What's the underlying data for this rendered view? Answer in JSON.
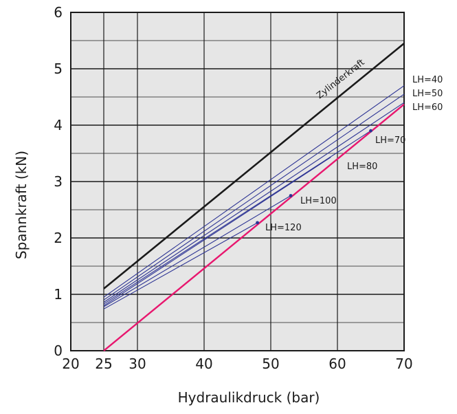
{
  "chart_data": {
    "type": "line",
    "title": "",
    "xlabel": "Hydraulikdruck (bar)",
    "ylabel": "Spannkraft  (kN)",
    "xlim": [
      20,
      70
    ],
    "ylim": [
      0,
      6
    ],
    "x_ticks": [
      20,
      25,
      30,
      40,
      50,
      60,
      70
    ],
    "x_tick_labels": [
      "20",
      "25",
      "30",
      "40",
      "50",
      "60",
      "70"
    ],
    "y_ticks": [
      0,
      1,
      2,
      3,
      4,
      5,
      6
    ],
    "y_tick_labels": [
      "0",
      "1",
      "2",
      "3",
      "4",
      "5",
      "6"
    ],
    "x_minor_grid": [
      20,
      25,
      30,
      40,
      50,
      60,
      70
    ],
    "y_minor_grid": [
      0.5,
      1.5,
      2.5,
      3.5,
      4.5,
      5.5
    ],
    "grid": true,
    "background": "#e6e6e6",
    "colors": {
      "cylinder": "#1a1a1a",
      "lh_curves": "#2d3494",
      "limit": "#e8166e"
    },
    "series": [
      {
        "name": "Zylinderkraft",
        "x": [
          25,
          70
        ],
        "y": [
          1.1,
          5.45
        ]
      },
      {
        "name": "LH=40",
        "x": [
          25,
          70
        ],
        "y": [
          0.95,
          4.7
        ]
      },
      {
        "name": "LH=50",
        "x": [
          25,
          70
        ],
        "y": [
          0.9,
          4.55
        ]
      },
      {
        "name": "LH=60",
        "x": [
          25,
          70
        ],
        "y": [
          0.86,
          4.4
        ]
      },
      {
        "name": "LH=70",
        "x": [
          25,
          65
        ],
        "y": [
          0.83,
          3.9
        ]
      },
      {
        "name": "LH=80",
        "x": [
          25,
          59
        ],
        "y": [
          0.8,
          3.43
        ]
      },
      {
        "name": "LH=100",
        "x": [
          25,
          53
        ],
        "y": [
          0.78,
          2.75
        ]
      },
      {
        "name": "LH=120",
        "x": [
          25,
          48
        ],
        "y": [
          0.74,
          2.27
        ]
      },
      {
        "x": [
          25,
          70
        ],
        "y": [
          0.0,
          4.37
        ]
      }
    ],
    "endpoints": [
      {
        "series": "LH=70",
        "x": 65,
        "y": 3.9
      },
      {
        "series": "LH=100",
        "x": 53,
        "y": 2.75
      },
      {
        "series": "LH=120",
        "x": 48,
        "y": 2.27
      }
    ]
  }
}
